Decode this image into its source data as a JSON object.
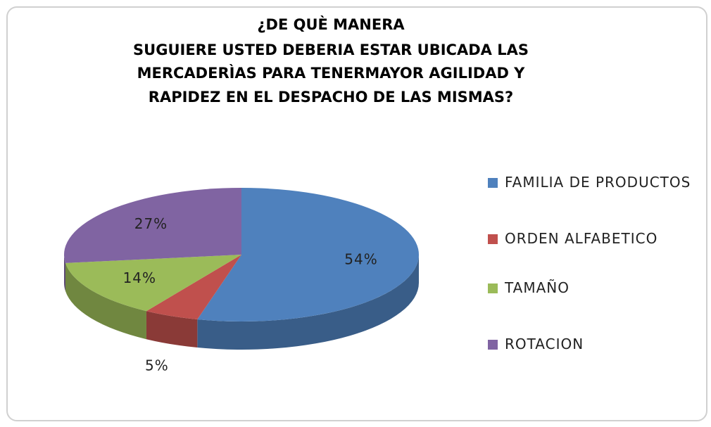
{
  "chart_data": {
    "type": "pie",
    "title": [
      "¿DE QUÈ MANERA",
      "SUGUIERE USTED DEBERIA ESTAR UBICADA LAS",
      "MERCADERÌAS PARA TENERMAYOR AGILIDAD Y",
      "RAPIDEZ EN EL DESPACHO  DE LAS MISMAS?"
    ],
    "categories": [
      "FAMILIA DE PRODUCTOS",
      "ORDEN ALFABETICO",
      "TAMAÑO",
      "ROTACION"
    ],
    "values": [
      54,
      5,
      14,
      27
    ],
    "value_labels": [
      "54%",
      "5%",
      "14%",
      "27%"
    ],
    "colors": [
      "#4f81bd",
      "#c0504d",
      "#9bbb59",
      "#8064a2"
    ],
    "legend": "right"
  }
}
